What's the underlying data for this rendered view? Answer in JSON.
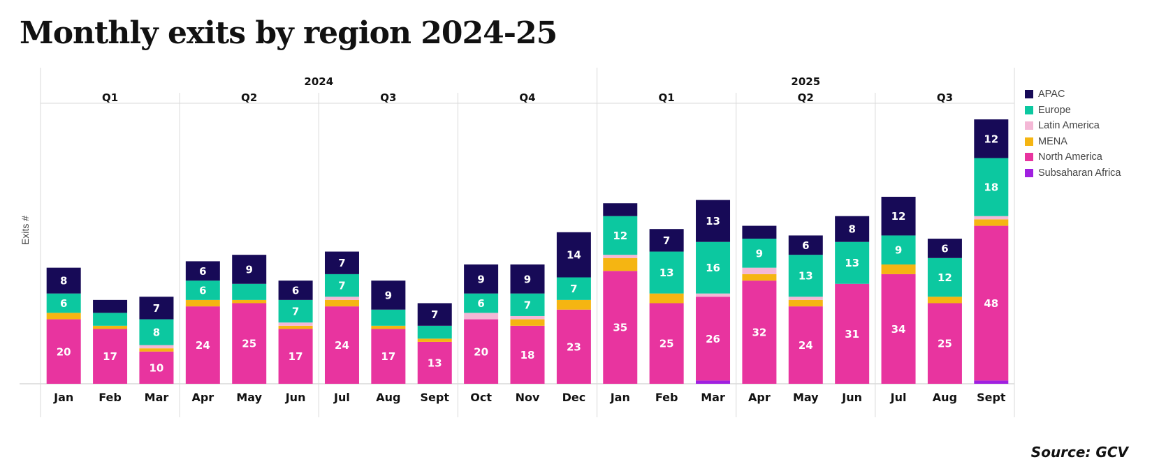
{
  "chart_data": {
    "type": "bar",
    "stacked": true,
    "title": "Monthly exits by region 2024-25",
    "xlabel": "",
    "ylabel": "Exits #",
    "ylim": [
      0,
      87
    ],
    "grid": false,
    "legend_position": "right",
    "source": "Source: GCV",
    "years": [
      {
        "label": "2024",
        "quarters": [
          "Q1",
          "Q2",
          "Q3",
          "Q4"
        ]
      },
      {
        "label": "2025",
        "quarters": [
          "Q1",
          "Q2",
          "Q3"
        ]
      }
    ],
    "categories": [
      "Jan",
      "Feb",
      "Mar",
      "Apr",
      "May",
      "Jun",
      "Jul",
      "Aug",
      "Sept",
      "Oct",
      "Nov",
      "Dec",
      "Jan",
      "Feb",
      "Mar",
      "Apr",
      "May",
      "Jun",
      "Jul",
      "Aug",
      "Sept"
    ],
    "series": [
      {
        "name": "Subsaharan Africa",
        "color": "#a020e0",
        "values": [
          0,
          0,
          0,
          0,
          0,
          0,
          0,
          0,
          0,
          0,
          0,
          0,
          0,
          0,
          1,
          0,
          0,
          0,
          0,
          0,
          1
        ]
      },
      {
        "name": "North America",
        "color": "#e8349f",
        "values": [
          20,
          17,
          10,
          24,
          25,
          17,
          24,
          17,
          13,
          20,
          18,
          23,
          35,
          25,
          26,
          32,
          24,
          31,
          34,
          25,
          48
        ]
      },
      {
        "name": "MENA",
        "color": "#f5b512",
        "values": [
          2,
          1,
          1,
          2,
          1,
          1,
          2,
          1,
          1,
          0,
          2,
          3,
          4,
          3,
          0,
          2,
          2,
          0,
          3,
          2,
          2
        ]
      },
      {
        "name": "Latin America",
        "color": "#f4b8d6",
        "values": [
          0,
          0,
          1,
          0,
          0,
          1,
          1,
          0,
          0,
          2,
          1,
          0,
          1,
          0,
          1,
          2,
          1,
          0,
          0,
          0,
          1
        ]
      },
      {
        "name": "Europe",
        "color": "#0cc8a0",
        "values": [
          6,
          4,
          8,
          6,
          5,
          7,
          7,
          5,
          4,
          6,
          7,
          7,
          12,
          13,
          16,
          9,
          13,
          13,
          9,
          12,
          18
        ]
      },
      {
        "name": "APAC",
        "color": "#170a57",
        "values": [
          8,
          4,
          7,
          6,
          9,
          6,
          7,
          9,
          7,
          9,
          9,
          14,
          4,
          7,
          13,
          4,
          6,
          8,
          12,
          6,
          12
        ]
      }
    ],
    "label_threshold": 6,
    "legend_order": [
      "APAC",
      "Europe",
      "Latin America",
      "MENA",
      "North America",
      "Subsaharan Africa"
    ]
  }
}
